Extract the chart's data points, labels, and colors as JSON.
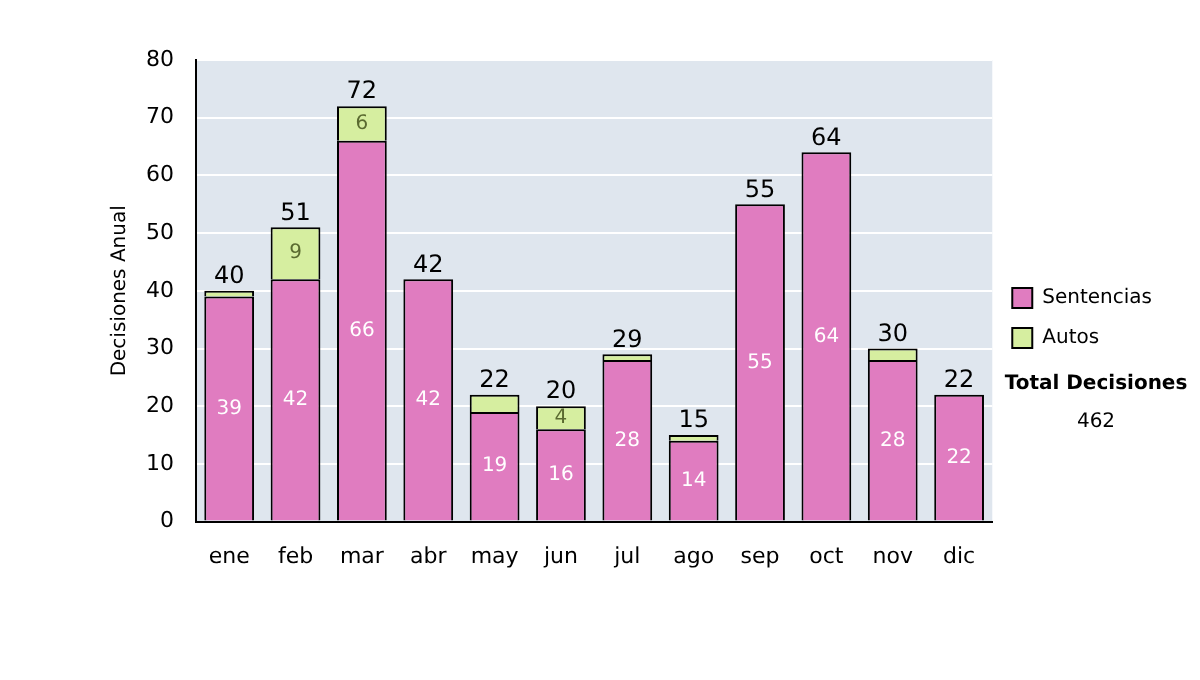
{
  "chart_data": {
    "type": "bar",
    "stacked": true,
    "ylabel": "Decisiones Anual",
    "categories": [
      "ene",
      "feb",
      "mar",
      "abr",
      "may",
      "jun",
      "jul",
      "ago",
      "sep",
      "oct",
      "nov",
      "dic"
    ],
    "series": [
      {
        "name": "Sentencias",
        "color": "#e07cc0",
        "values": [
          39,
          42,
          66,
          42,
          19,
          16,
          28,
          14,
          55,
          64,
          28,
          22
        ],
        "value_labels": [
          "39",
          "42",
          "66",
          "42",
          "19",
          "16",
          "28",
          "14",
          "55",
          "64",
          "28",
          "22"
        ]
      },
      {
        "name": "Autos",
        "color": "#d6eea0",
        "values": [
          1,
          9,
          6,
          0,
          3,
          4,
          1,
          1,
          0,
          0,
          2,
          0
        ],
        "value_labels": [
          null,
          "9",
          "6",
          null,
          null,
          "4",
          null,
          null,
          null,
          null,
          null,
          null
        ]
      }
    ],
    "totals": [
      "40",
      "51",
      "72",
      "42",
      "22",
      "20",
      "29",
      "15",
      "55",
      "64",
      "30",
      "22"
    ],
    "ylim": [
      0,
      80
    ],
    "yticks": [
      0,
      10,
      20,
      30,
      40,
      50,
      60,
      70,
      80
    ],
    "grid": "y",
    "legend": "right",
    "annotations": [
      "Total Decisiones",
      "462"
    ]
  }
}
